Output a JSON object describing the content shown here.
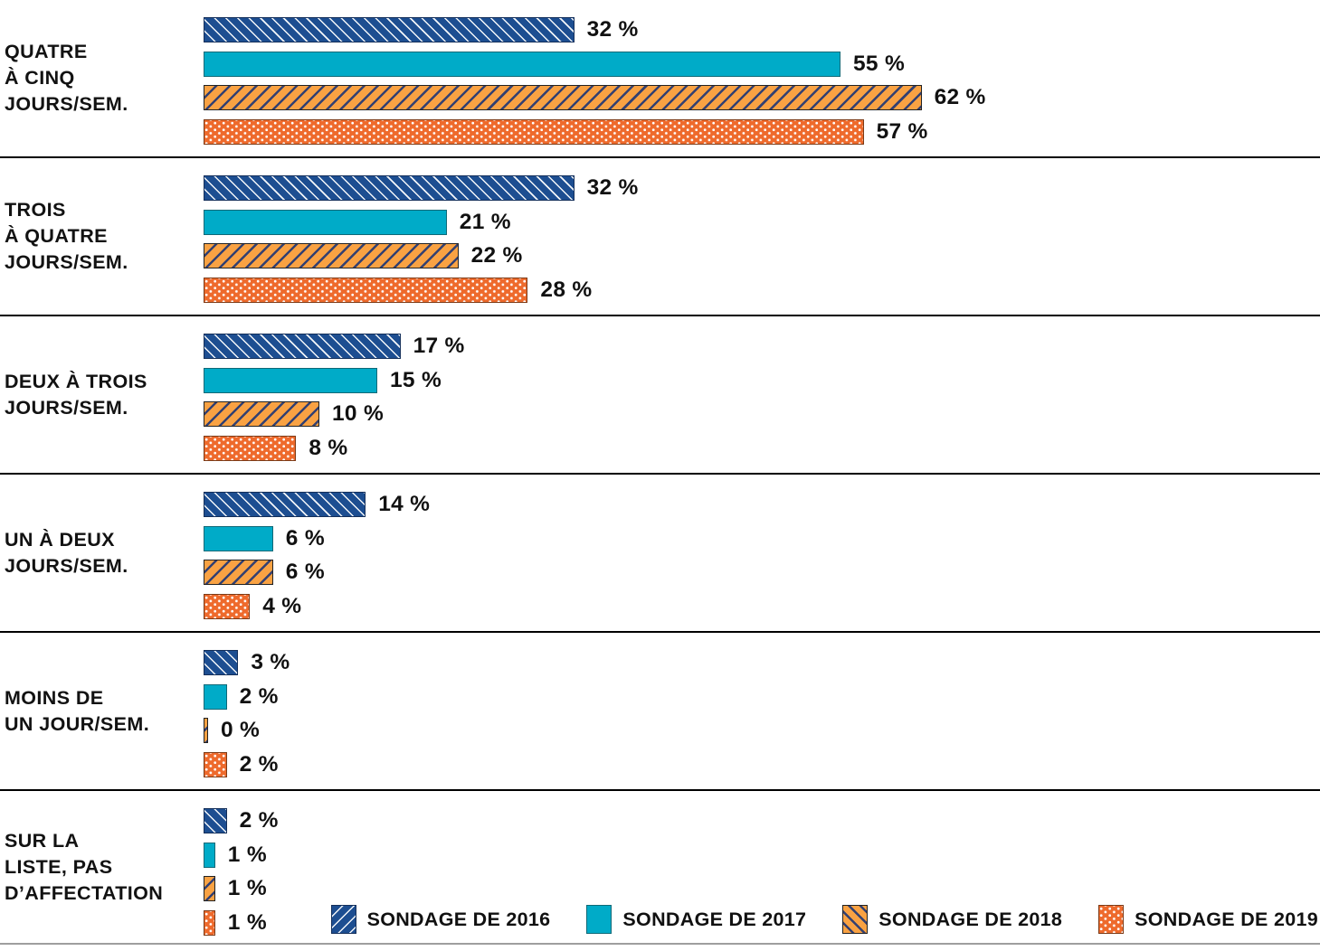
{
  "chart_data": {
    "type": "bar",
    "orientation": "horizontal",
    "unit": "%",
    "value_label_format": "{v} %",
    "xlim": [
      0,
      100
    ],
    "grid": false,
    "axes_hidden": true,
    "legend_position": "bottom-right",
    "categories": [
      "QUATRE À CINQ JOURS/SEM.",
      "TROIS À QUATRE JOURS/SEM.",
      "DEUX À TROIS JOURS/SEM.",
      "UN À DEUX JOURS/SEM.",
      "MOINS DE UN JOUR/SEM.",
      "SUR LA LISTE, PAS D’AFFECTATION"
    ],
    "category_label_lines": [
      [
        "QUATRE",
        "À CINQ",
        "JOURS/SEM."
      ],
      [
        "TROIS",
        "À QUATRE",
        "JOURS/SEM."
      ],
      [
        "DEUX À TROIS",
        "JOURS/SEM."
      ],
      [
        "UN À DEUX",
        "JOURS/SEM."
      ],
      [
        "MOINS DE",
        "UN JOUR/SEM."
      ],
      [
        "SUR LA",
        "LISTE, PAS",
        "D’AFFECTATION"
      ]
    ],
    "series": [
      {
        "name": "SONDAGE DE 2016",
        "color": "#1d4e91",
        "pattern": "white-diagonal-stripes",
        "values": [
          32,
          32,
          17,
          14,
          3,
          2
        ]
      },
      {
        "name": "SONDAGE DE 2017",
        "color": "#00abc8",
        "pattern": "solid",
        "values": [
          55,
          21,
          15,
          6,
          2,
          1
        ]
      },
      {
        "name": "SONDAGE DE 2018",
        "color": "#f9a243",
        "pattern": "navy-diagonal-stripes",
        "values": [
          62,
          22,
          10,
          6,
          0,
          1
        ]
      },
      {
        "name": "SONDAGE DE 2019",
        "color": "#ee6a2c",
        "pattern": "white-dots",
        "values": [
          57,
          28,
          8,
          4,
          2,
          1
        ]
      }
    ],
    "value_labels": [
      [
        "32 %",
        "55 %",
        "62 %",
        "57 %"
      ],
      [
        "32 %",
        "21 %",
        "22 %",
        "28 %"
      ],
      [
        "17 %",
        "15 %",
        "10 %",
        "8 %"
      ],
      [
        "14 %",
        "6 %",
        "6 %",
        "4 %"
      ],
      [
        "3 %",
        "2 %",
        "0 %",
        "2 %"
      ],
      [
        "2 %",
        "1 %",
        "1 %",
        "1 %"
      ]
    ],
    "colors": {
      "separator": "#000000",
      "bottom_separator": "#9e9e9e",
      "text": "#111111"
    }
  }
}
